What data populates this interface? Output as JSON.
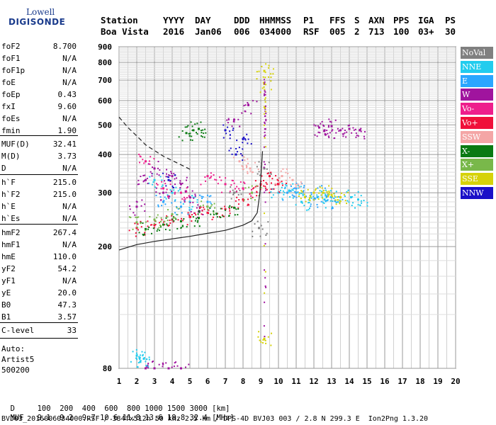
{
  "logo": {
    "line1": "Lowell",
    "line2": "DIGISONDE"
  },
  "header": {
    "row1": [
      "Station",
      "YYYY",
      "DAY",
      "DDD",
      "HHMMSS",
      "P1",
      "FFS",
      "S",
      "AXN",
      "PPS",
      "IGA",
      "PS"
    ],
    "row2": [
      "Boa Vista",
      "2016",
      "Jan06",
      "006",
      "034000",
      "RSF",
      "005",
      "2",
      "713",
      "100",
      "03+",
      "30"
    ]
  },
  "params": [
    {
      "name": "foF2",
      "value": "8.700"
    },
    {
      "name": "foF1",
      "value": "N/A"
    },
    {
      "name": "foF1p",
      "value": "N/A"
    },
    {
      "name": "foE",
      "value": "N/A"
    },
    {
      "name": "foEp",
      "value": "0.43"
    },
    {
      "name": "fxI",
      "value": "9.60"
    },
    {
      "name": "foEs",
      "value": "N/A"
    },
    {
      "name": "fmin",
      "value": "1.90"
    },
    {
      "name": "MUF(D)",
      "value": "32.41"
    },
    {
      "name": "M(D)",
      "value": "3.73"
    },
    {
      "name": "D",
      "value": "N/A"
    },
    {
      "name": "h`F",
      "value": "215.0"
    },
    {
      "name": "h`F2",
      "value": "215.0"
    },
    {
      "name": "h`E",
      "value": "N/A"
    },
    {
      "name": "h`Es",
      "value": "N/A"
    },
    {
      "name": "hmF2",
      "value": "267.4"
    },
    {
      "name": "hmF1",
      "value": "N/A"
    },
    {
      "name": "hmE",
      "value": "110.0"
    },
    {
      "name": "yF2",
      "value": "54.2"
    },
    {
      "name": "yF1",
      "value": "N/A"
    },
    {
      "name": "yE",
      "value": "20.0"
    },
    {
      "name": "B0",
      "value": "47.3"
    },
    {
      "name": "B1",
      "value": "3.57"
    },
    {
      "name": "C-level",
      "value": "33"
    }
  ],
  "auto": {
    "line1": "Auto:",
    "line2": "Artist5",
    "line3": "500200"
  },
  "legend": [
    {
      "label": "NoVal",
      "color": "#808080"
    },
    {
      "label": "NNE",
      "color": "#22ccee"
    },
    {
      "label": "E",
      "color": "#2aa6ff"
    },
    {
      "label": "W",
      "color": "#a0149e"
    },
    {
      "label": "Vo-",
      "color": "#ee1e8c"
    },
    {
      "label": "Vo+",
      "color": "#f0103a"
    },
    {
      "label": "SSW",
      "color": "#f4a6a6"
    },
    {
      "label": "X-",
      "color": "#0a7a12"
    },
    {
      "label": "X+",
      "color": "#79b84a"
    },
    {
      "label": "SSE",
      "color": "#d6d20a"
    },
    {
      "label": "NNW",
      "color": "#1a10c8"
    }
  ],
  "bottom": {
    "d_label": "D",
    "d_values": "100  200  400  600  800 1000 1500 3000 [km]",
    "muf_label": "MUF",
    "muf_values": "9.1  9.2  9.7 10.6 11.8 13.6 18.8 32.4 [MHz]",
    "footer": "BVJ03_2016006034000.RSF / 384fx512h 50 kHz 2.5 km / DPS-4D BVJ03 003 / 2.8 N 299.3 E  Ion2Png 1.3.20"
  },
  "chart_data": {
    "type": "scatter",
    "title": "",
    "xlabel": "",
    "ylabel": "",
    "xlim": [
      1,
      20
    ],
    "ylim": [
      80,
      900
    ],
    "x_ticks": [
      1,
      2,
      3,
      4,
      5,
      6,
      7,
      8,
      9,
      10,
      11,
      12,
      13,
      14,
      15,
      16,
      17,
      18,
      19,
      20
    ],
    "y_ticks": [
      80,
      200,
      300,
      400,
      500,
      600,
      700,
      800,
      900
    ],
    "y_scale": "log",
    "grid": true,
    "legend_placement": "right",
    "series": [
      {
        "name": "NoVal",
        "points": [
          [
            8.9,
            230
          ],
          [
            9.2,
            360
          ],
          [
            7.5,
            300
          ]
        ]
      },
      {
        "name": "NNE",
        "points": [
          [
            2.0,
            88
          ],
          [
            2.2,
            84
          ],
          [
            2.4,
            86
          ],
          [
            3.0,
            330
          ],
          [
            4.0,
            300
          ],
          [
            5.0,
            280
          ],
          [
            10.0,
            300
          ],
          [
            10.6,
            305
          ],
          [
            11.0,
            300
          ],
          [
            11.3,
            280
          ],
          [
            12.2,
            290
          ],
          [
            12.6,
            285
          ],
          [
            13.0,
            290
          ],
          [
            14.1,
            290
          ],
          [
            14.5,
            285
          ]
        ]
      },
      {
        "name": "E",
        "points": [
          [
            3.5,
            280
          ],
          [
            4.5,
            270
          ],
          [
            6.0,
            280
          ],
          [
            10.5,
            300
          ],
          [
            11.0,
            310
          ],
          [
            12.0,
            285
          ],
          [
            12.5,
            300
          ],
          [
            13.2,
            282
          ]
        ]
      },
      {
        "name": "W",
        "points": [
          [
            2.0,
            270
          ],
          [
            2.5,
            330
          ],
          [
            3.0,
            360
          ],
          [
            3.5,
            300
          ],
          [
            4.0,
            340
          ],
          [
            4.5,
            320
          ],
          [
            5.0,
            290
          ],
          [
            5.5,
            260
          ],
          [
            2.5,
            80
          ],
          [
            3.0,
            80
          ],
          [
            3.8,
            80
          ],
          [
            4.5,
            80
          ],
          [
            12.3,
            490
          ],
          [
            12.6,
            480
          ],
          [
            13.0,
            495
          ],
          [
            13.5,
            480
          ],
          [
            14.0,
            485
          ],
          [
            14.6,
            480
          ],
          [
            8.3,
            580
          ],
          [
            7.5,
            520
          ]
        ]
      },
      {
        "name": "Vo-",
        "points": [
          [
            2.5,
            380
          ],
          [
            3.5,
            310
          ],
          [
            4.5,
            300
          ],
          [
            6.0,
            340
          ],
          [
            7.0,
            320
          ],
          [
            8.0,
            310
          ]
        ]
      },
      {
        "name": "Vo+",
        "points": [
          [
            2.0,
            230
          ],
          [
            3.0,
            235
          ],
          [
            4.0,
            245
          ],
          [
            5.0,
            250
          ],
          [
            6.0,
            258
          ],
          [
            7.0,
            265
          ],
          [
            8.0,
            285
          ],
          [
            8.5,
            300
          ],
          [
            9.0,
            320
          ],
          [
            9.5,
            340
          ],
          [
            10.0,
            320
          ]
        ]
      },
      {
        "name": "SSW",
        "points": [
          [
            7.8,
            380
          ],
          [
            8.4,
            360
          ],
          [
            10.2,
            340
          ],
          [
            10.8,
            330
          ]
        ]
      },
      {
        "name": "X-",
        "points": [
          [
            2.5,
            228
          ],
          [
            3.5,
            236
          ],
          [
            4.5,
            242
          ],
          [
            5.5,
            248
          ],
          [
            6.5,
            256
          ],
          [
            7.5,
            268
          ],
          [
            4.8,
            470
          ],
          [
            5.2,
            480
          ],
          [
            5.5,
            485
          ]
        ]
      },
      {
        "name": "X+",
        "points": [
          [
            2.0,
            240
          ],
          [
            3.0,
            245
          ],
          [
            4.0,
            255
          ],
          [
            6.0,
            270
          ],
          [
            8.5,
            300
          ]
        ]
      },
      {
        "name": "SSE",
        "points": [
          [
            11.5,
            290
          ],
          [
            12.0,
            300
          ],
          [
            12.5,
            300
          ],
          [
            13.0,
            295
          ],
          [
            13.5,
            290
          ],
          [
            9.2,
            750
          ],
          [
            9.2,
            680
          ],
          [
            9.2,
            100
          ]
        ]
      },
      {
        "name": "NNW",
        "points": [
          [
            3.8,
            330
          ],
          [
            7.0,
            480
          ],
          [
            8.0,
            450
          ],
          [
            7.6,
            400
          ]
        ]
      }
    ]
  }
}
